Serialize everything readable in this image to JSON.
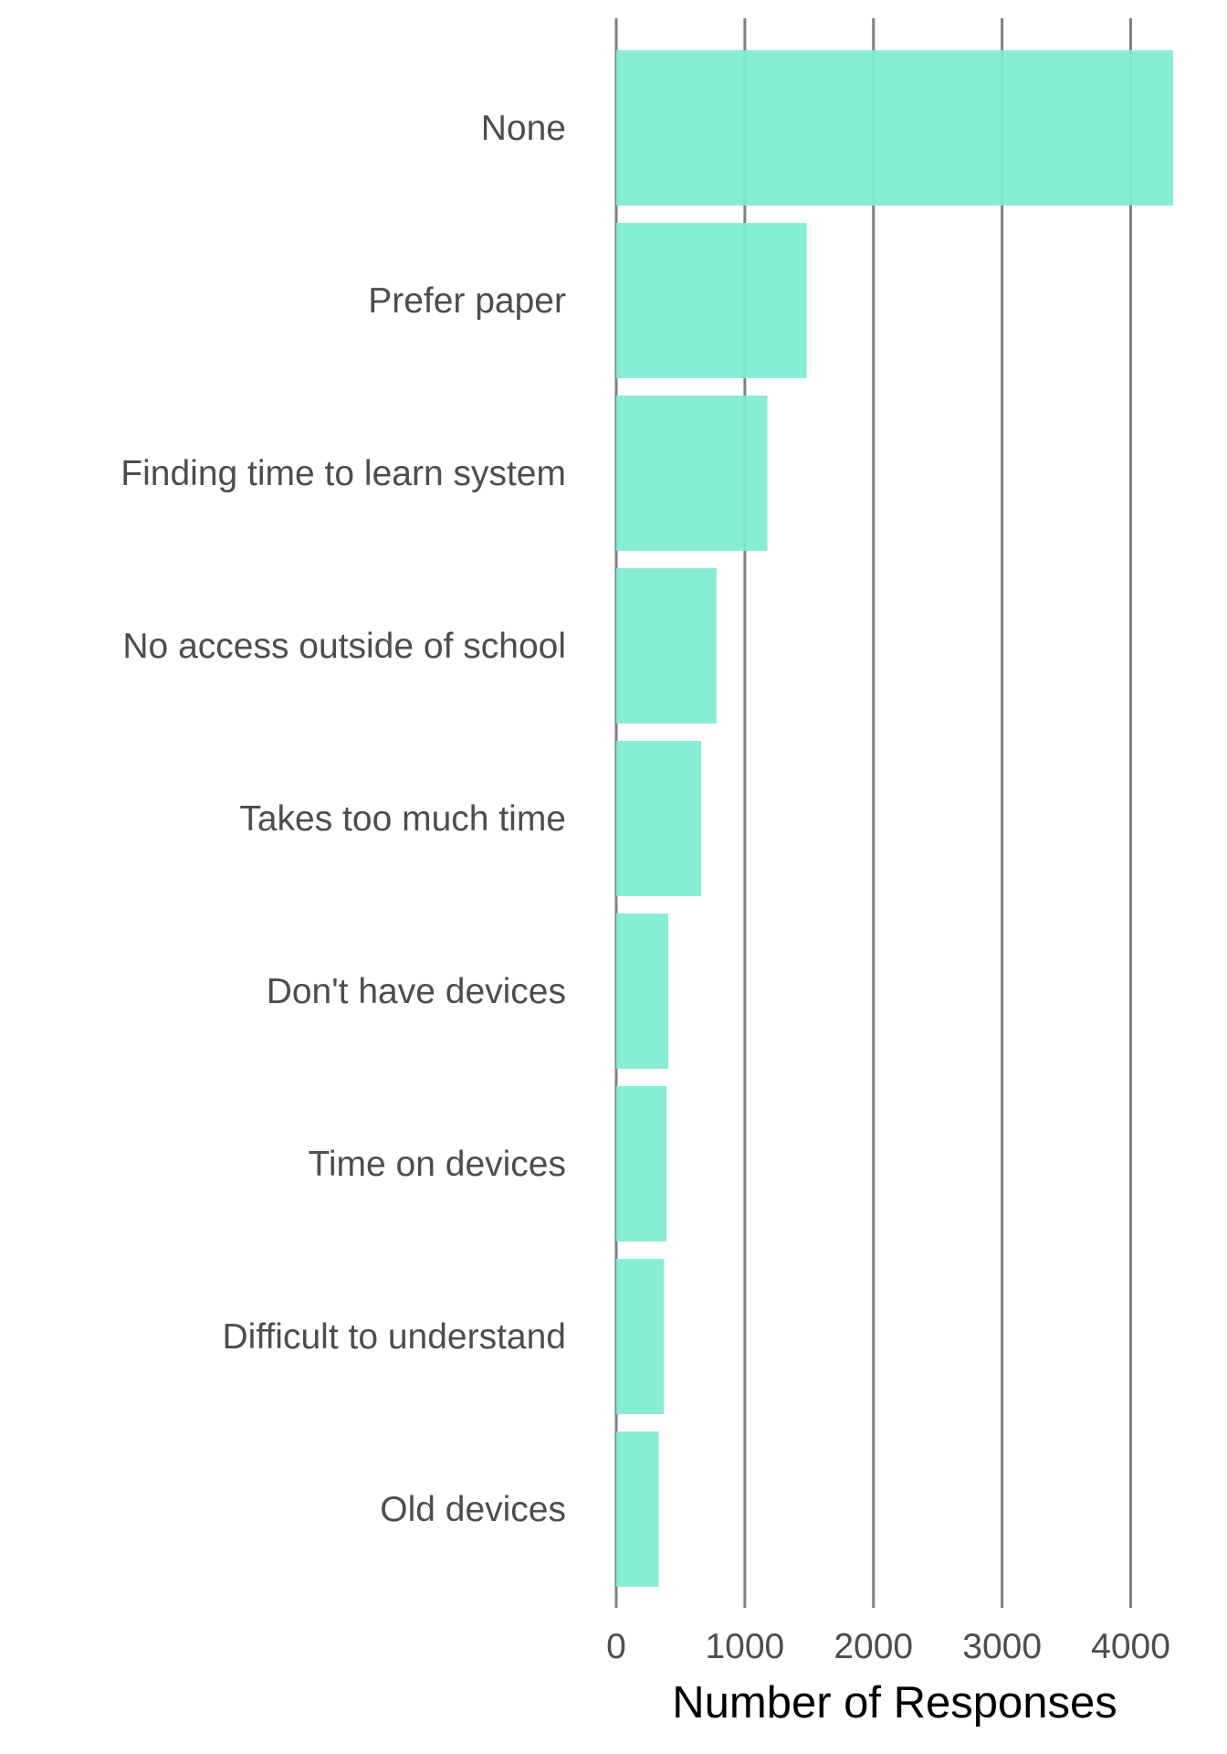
{
  "chart_data": {
    "type": "bar",
    "orientation": "horizontal",
    "title": "",
    "xlabel": "Number of Responses",
    "ylabel": "",
    "categories": [
      "None",
      "Prefer paper",
      "Finding time to learn system",
      "No access outside of school",
      "Takes too much time",
      "Don't have devices",
      "Time on devices",
      "Difficult to understand",
      "Old devices"
    ],
    "values": [
      4330,
      1480,
      1175,
      780,
      660,
      405,
      390,
      370,
      330
    ],
    "xlim": [
      0,
      4330
    ],
    "xticks": [
      0,
      1000,
      2000,
      3000,
      4000
    ],
    "xtick_labels": [
      "0",
      "1000",
      "2000",
      "3000",
      "4000"
    ],
    "grid": "vertical",
    "bar_color": "#7eebd2",
    "grid_color": "#808080",
    "label_color": "#4d4d4d"
  }
}
